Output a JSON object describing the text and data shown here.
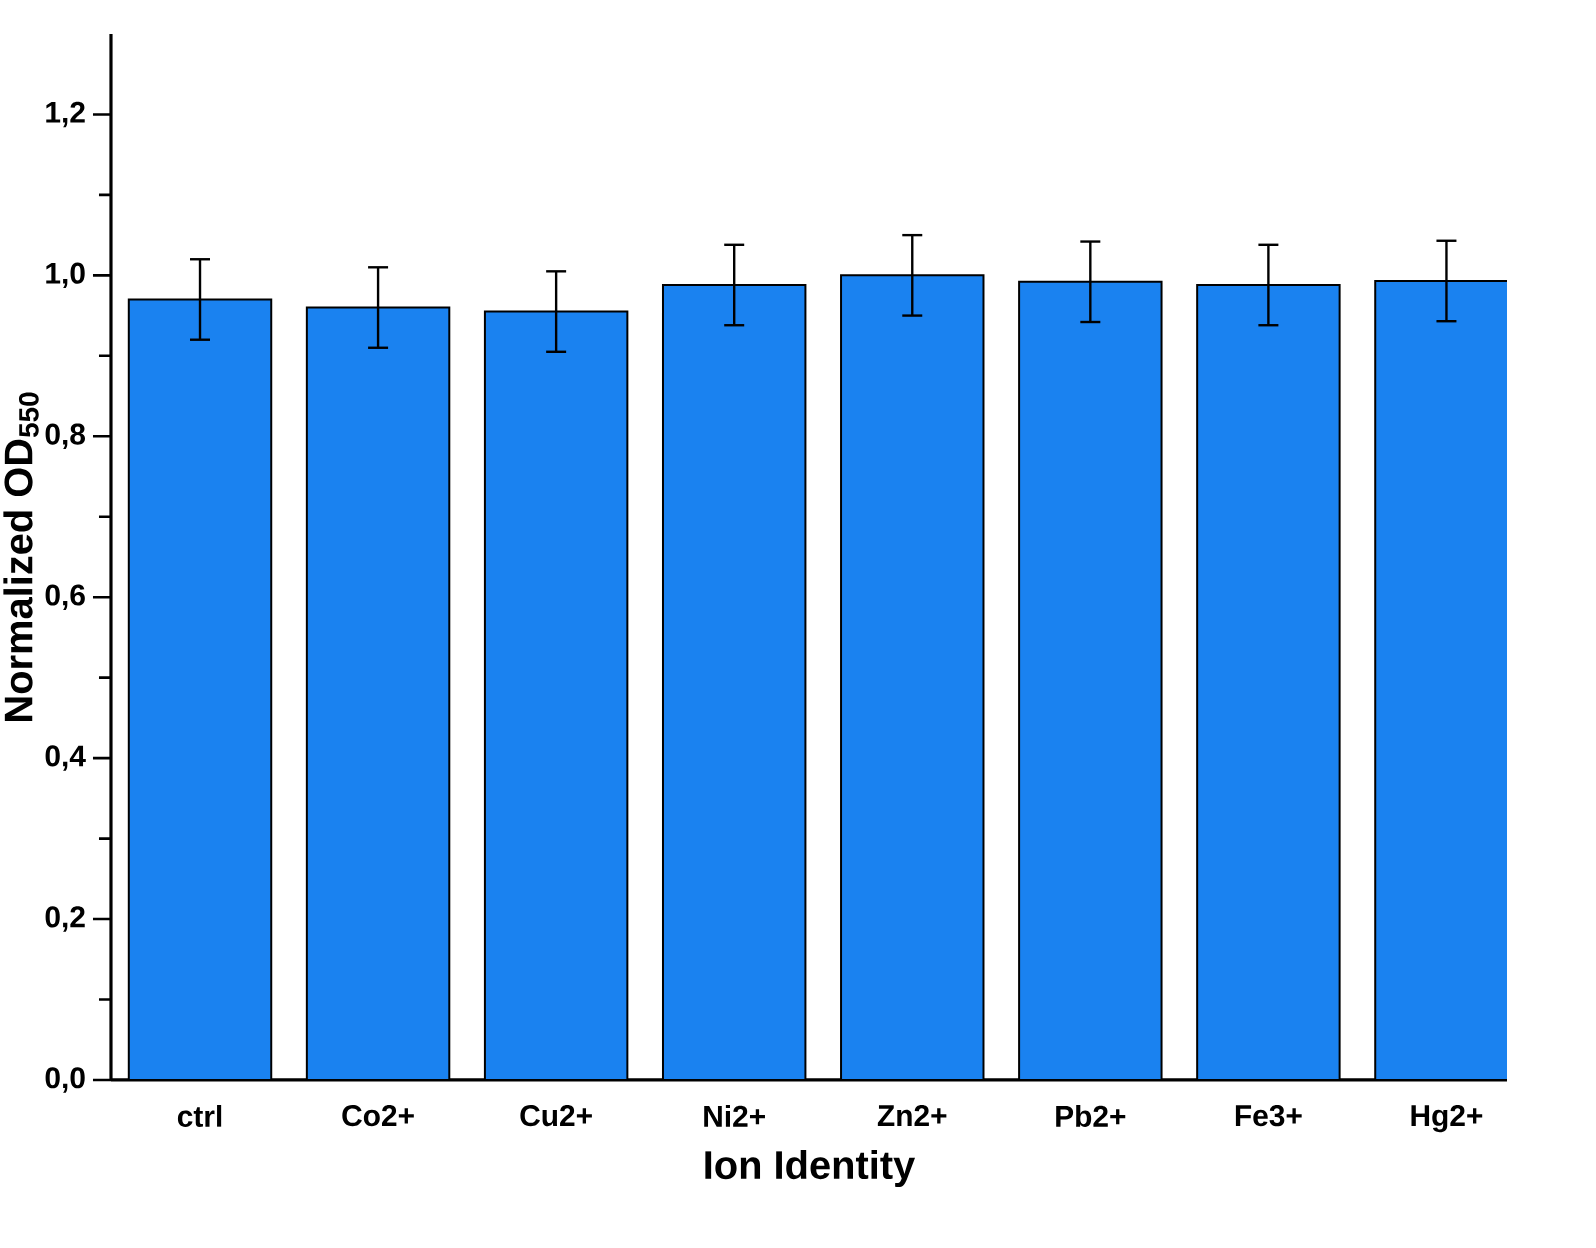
{
  "chart_data": {
    "type": "bar",
    "xlabel": "Ion Identity",
    "ylabel": "Normalized OD$_{550}$",
    "categories": [
      "ctrl",
      "Co2+",
      "Cu2+",
      "Ni2+",
      "Zn2+",
      "Pb2+",
      "Fe3+",
      "Hg2+"
    ],
    "values": [
      0.97,
      0.96,
      0.955,
      0.988,
      1.0,
      0.992,
      0.988,
      0.993
    ],
    "errors": [
      0.05,
      0.05,
      0.05,
      0.05,
      0.05,
      0.05,
      0.05,
      0.05
    ],
    "color": "#1a82f0",
    "ylim": [
      0,
      1.3
    ],
    "yticks": [
      {
        "value": 0,
        "label": "0,0"
      },
      {
        "value": 0.2,
        "label": "0,2"
      },
      {
        "value": 0.4,
        "label": "0,4"
      },
      {
        "value": 0.6,
        "label": "0,6"
      },
      {
        "value": 0.8,
        "label": "0,8"
      },
      {
        "value": 1.0,
        "label": "1,0"
      },
      {
        "value": 1.2,
        "label": "1,2"
      }
    ],
    "grid": false
  }
}
